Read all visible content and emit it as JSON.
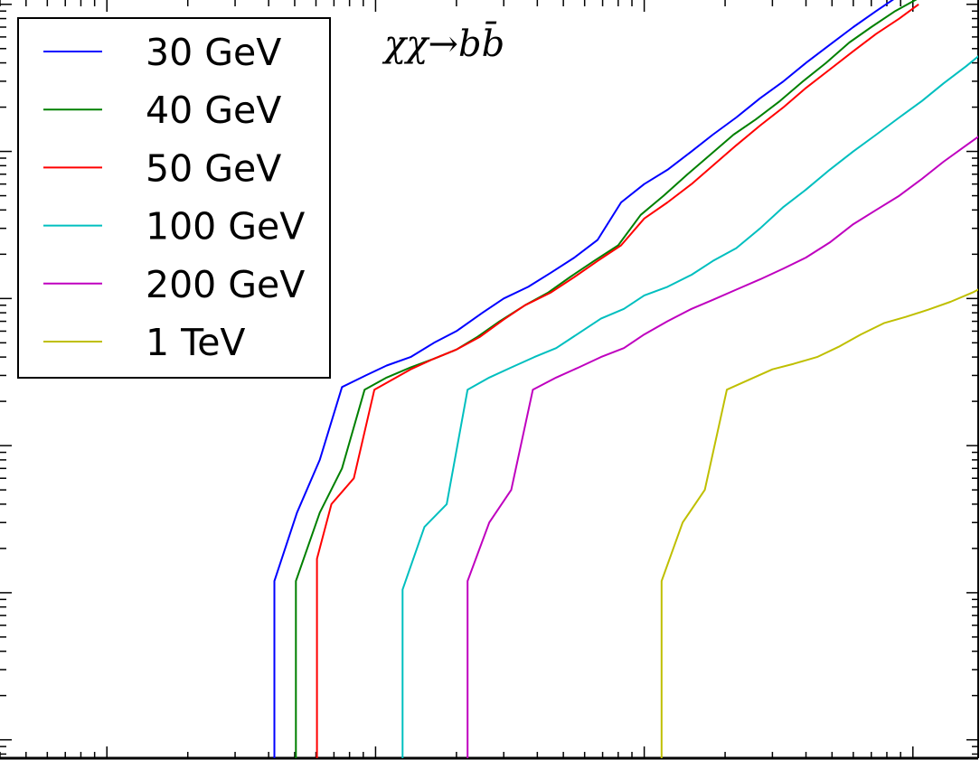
{
  "chart_data": {
    "type": "line",
    "title": "",
    "xlabel": "",
    "ylabel": "",
    "xscale": "log",
    "yscale": "log",
    "xlim": [
      0.4,
      1750
    ],
    "ylim": [
      7.5e-14,
      1.07e-08
    ],
    "grid": false,
    "legend_position": "top-left",
    "annotation": {
      "chi": "χχ",
      "arrow": "→",
      "b": "b",
      "bbar": "b̄"
    },
    "series": [
      {
        "name": "30 GeV",
        "color": "#0000ff",
        "points": [
          [
            4.2,
            7e-14
          ],
          [
            4.2,
            1.2e-12
          ],
          [
            5.1,
            3.5e-12
          ],
          [
            6.2,
            8e-12
          ],
          [
            7.5,
            2.5e-11
          ],
          [
            9.2,
            3e-11
          ],
          [
            11,
            3.5e-11
          ],
          [
            13.5,
            4e-11
          ],
          [
            16.5,
            5e-11
          ],
          [
            20,
            6e-11
          ],
          [
            25,
            8e-11
          ],
          [
            30,
            1e-10
          ],
          [
            37,
            1.2e-10
          ],
          [
            45,
            1.5e-10
          ],
          [
            55,
            1.9e-10
          ],
          [
            67,
            2.5e-10
          ],
          [
            82,
            4.5e-10
          ],
          [
            100,
            6e-10
          ],
          [
            122,
            7.5e-10
          ],
          [
            150,
            1e-09
          ],
          [
            180,
            1.3e-09
          ],
          [
            220,
            1.7e-09
          ],
          [
            270,
            2.3e-09
          ],
          [
            330,
            3e-09
          ],
          [
            400,
            4e-09
          ],
          [
            490,
            5.3e-09
          ],
          [
            600,
            7e-09
          ],
          [
            730,
            9e-09
          ],
          [
            890,
            1.15e-08
          ]
        ]
      },
      {
        "name": "40 GeV",
        "color": "#008000",
        "points": [
          [
            5.05,
            7e-14
          ],
          [
            5.05,
            1.2e-12
          ],
          [
            6.2,
            3.5e-12
          ],
          [
            7.5,
            7e-12
          ],
          [
            9.1,
            2.4e-11
          ],
          [
            11,
            2.9e-11
          ],
          [
            13.5,
            3.4e-11
          ],
          [
            16.5,
            3.9e-11
          ],
          [
            20,
            4.5e-11
          ],
          [
            24,
            5.5e-11
          ],
          [
            29,
            7e-11
          ],
          [
            36,
            9e-11
          ],
          [
            44,
            1.1e-10
          ],
          [
            53,
            1.4e-10
          ],
          [
            65,
            1.8e-10
          ],
          [
            80,
            2.3e-10
          ],
          [
            97,
            3.7e-10
          ],
          [
            118,
            5e-10
          ],
          [
            145,
            7e-10
          ],
          [
            176,
            9.5e-10
          ],
          [
            215,
            1.3e-09
          ],
          [
            260,
            1.65e-09
          ],
          [
            320,
            2.2e-09
          ],
          [
            390,
            3e-09
          ],
          [
            475,
            4e-09
          ],
          [
            580,
            5.5e-09
          ],
          [
            700,
            7e-09
          ],
          [
            860,
            9e-09
          ],
          [
            1050,
            1.1e-08
          ]
        ]
      },
      {
        "name": "50 GeV",
        "color": "#ff0000",
        "points": [
          [
            6.05,
            7e-14
          ],
          [
            6.05,
            1.7e-12
          ],
          [
            6.85,
            4e-12
          ],
          [
            8.3,
            6e-12
          ],
          [
            9.9,
            2.4e-11
          ],
          [
            13.5,
            3.3e-11
          ],
          [
            16.5,
            3.9e-11
          ],
          [
            20,
            4.5e-11
          ],
          [
            24.5,
            5.5e-11
          ],
          [
            30,
            7.2e-11
          ],
          [
            36,
            9e-11
          ],
          [
            45,
            1.1e-10
          ],
          [
            55,
            1.4e-10
          ],
          [
            67,
            1.8e-10
          ],
          [
            82,
            2.3e-10
          ],
          [
            100,
            3.5e-10
          ],
          [
            122,
            4.5e-10
          ],
          [
            150,
            6e-10
          ],
          [
            180,
            8e-10
          ],
          [
            220,
            1.1e-09
          ],
          [
            270,
            1.5e-09
          ],
          [
            330,
            2e-09
          ],
          [
            400,
            2.7e-09
          ],
          [
            490,
            3.6e-09
          ],
          [
            600,
            4.8e-09
          ],
          [
            730,
            6.3e-09
          ],
          [
            890,
            8e-09
          ],
          [
            1050,
            1e-08
          ]
        ]
      },
      {
        "name": "100 GeV",
        "color": "#00bfbf",
        "points": [
          [
            12.6,
            7e-14
          ],
          [
            12.6,
            1.05e-12
          ],
          [
            15.2,
            2.8e-12
          ],
          [
            18.4,
            4e-12
          ],
          [
            22,
            2.4e-11
          ],
          [
            26.5,
            2.9e-11
          ],
          [
            32,
            3.4e-11
          ],
          [
            39,
            4e-11
          ],
          [
            47,
            4.6e-11
          ],
          [
            57,
            5.8e-11
          ],
          [
            69,
            7.3e-11
          ],
          [
            84,
            8.5e-11
          ],
          [
            100,
            1.05e-10
          ],
          [
            122,
            1.2e-10
          ],
          [
            150,
            1.45e-10
          ],
          [
            180,
            1.8e-10
          ],
          [
            220,
            2.2e-10
          ],
          [
            270,
            3e-10
          ],
          [
            330,
            4.2e-10
          ],
          [
            400,
            5.5e-10
          ],
          [
            490,
            7.5e-10
          ],
          [
            600,
            1e-09
          ],
          [
            730,
            1.3e-09
          ],
          [
            890,
            1.7e-09
          ],
          [
            1080,
            2.2e-09
          ],
          [
            1300,
            2.9e-09
          ],
          [
            1580,
            3.8e-09
          ],
          [
            1900,
            5e-09
          ]
        ]
      },
      {
        "name": "200 GeV",
        "color": "#bf00bf",
        "points": [
          [
            22,
            7e-14
          ],
          [
            22,
            1.2e-12
          ],
          [
            26.5,
            3e-12
          ],
          [
            32,
            5e-12
          ],
          [
            38.5,
            2.4e-11
          ],
          [
            47,
            2.9e-11
          ],
          [
            57,
            3.4e-11
          ],
          [
            69,
            4e-11
          ],
          [
            84,
            4.6e-11
          ],
          [
            100,
            5.7e-11
          ],
          [
            122,
            7e-11
          ],
          [
            150,
            8.5e-11
          ],
          [
            180,
            9.8e-11
          ],
          [
            220,
            1.15e-10
          ],
          [
            270,
            1.35e-10
          ],
          [
            330,
            1.6e-10
          ],
          [
            400,
            1.9e-10
          ],
          [
            490,
            2.4e-10
          ],
          [
            600,
            3.2e-10
          ],
          [
            730,
            4e-10
          ],
          [
            890,
            5e-10
          ],
          [
            1080,
            6.5e-10
          ],
          [
            1300,
            8.5e-10
          ],
          [
            1580,
            1.1e-09
          ],
          [
            1900,
            1.4e-09
          ]
        ]
      },
      {
        "name": "1 TeV",
        "color": "#bfbf00",
        "points": [
          [
            116,
            7e-14
          ],
          [
            116,
            1.2e-12
          ],
          [
            139,
            3e-12
          ],
          [
            168,
            5e-12
          ],
          [
            203,
            2.4e-11
          ],
          [
            245,
            2.8e-11
          ],
          [
            300,
            3.3e-11
          ],
          [
            360,
            3.6e-11
          ],
          [
            440,
            4e-11
          ],
          [
            530,
            4.7e-11
          ],
          [
            640,
            5.7e-11
          ],
          [
            780,
            6.8e-11
          ],
          [
            940,
            7.5e-11
          ],
          [
            1140,
            8.4e-11
          ],
          [
            1380,
            9.5e-11
          ],
          [
            1670,
            1.1e-10
          ],
          [
            2000,
            1.3e-10
          ]
        ]
      }
    ]
  }
}
